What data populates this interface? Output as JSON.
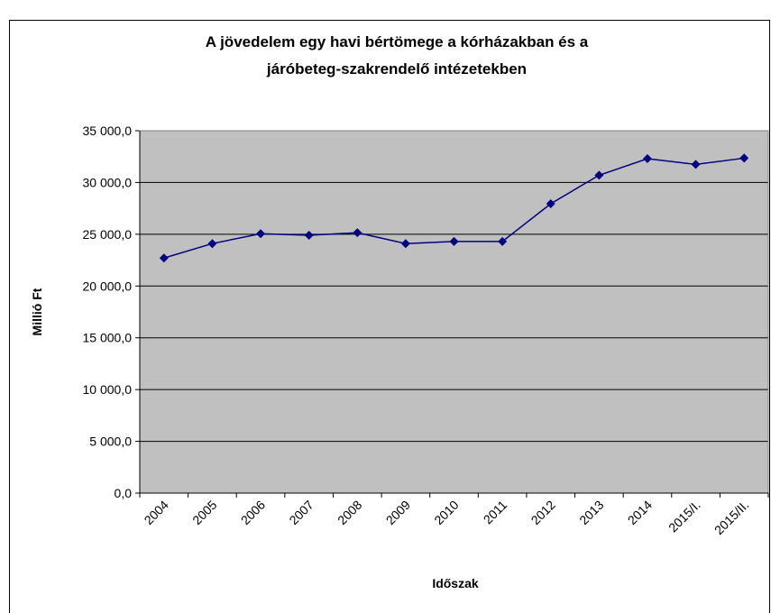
{
  "chart_data": {
    "type": "line",
    "title": [
      "A jövedelem egy havi bértömege a kórházakban és a",
      "járóbeteg-szakrendelő intézetekben"
    ],
    "x_label": "Időszak",
    "y_label": "Millió Ft",
    "categories": [
      "2004",
      "2005",
      "2006",
      "2007",
      "2008",
      "2009",
      "2010",
      "2011",
      "2012",
      "2013",
      "2014",
      "2015/I.",
      "2015/II."
    ],
    "values": [
      22700,
      24100,
      25050,
      24900,
      25150,
      24100,
      24300,
      24300,
      27950,
      30700,
      32300,
      31750,
      32350
    ],
    "color": "#000080",
    "plot_background": "#c0c0c0",
    "ylim": [
      0,
      35000
    ],
    "yticks": [
      {
        "value": 0,
        "label": "0,0"
      },
      {
        "value": 5000,
        "label": "5 000,0"
      },
      {
        "value": 10000,
        "label": "10 000,0"
      },
      {
        "value": 15000,
        "label": "15 000,0"
      },
      {
        "value": 20000,
        "label": "20 000,0"
      },
      {
        "value": 25000,
        "label": "25 000,0"
      },
      {
        "value": 30000,
        "label": "30 000,0"
      },
      {
        "value": 35000,
        "label": "35 000,0"
      }
    ],
    "grid": true
  }
}
